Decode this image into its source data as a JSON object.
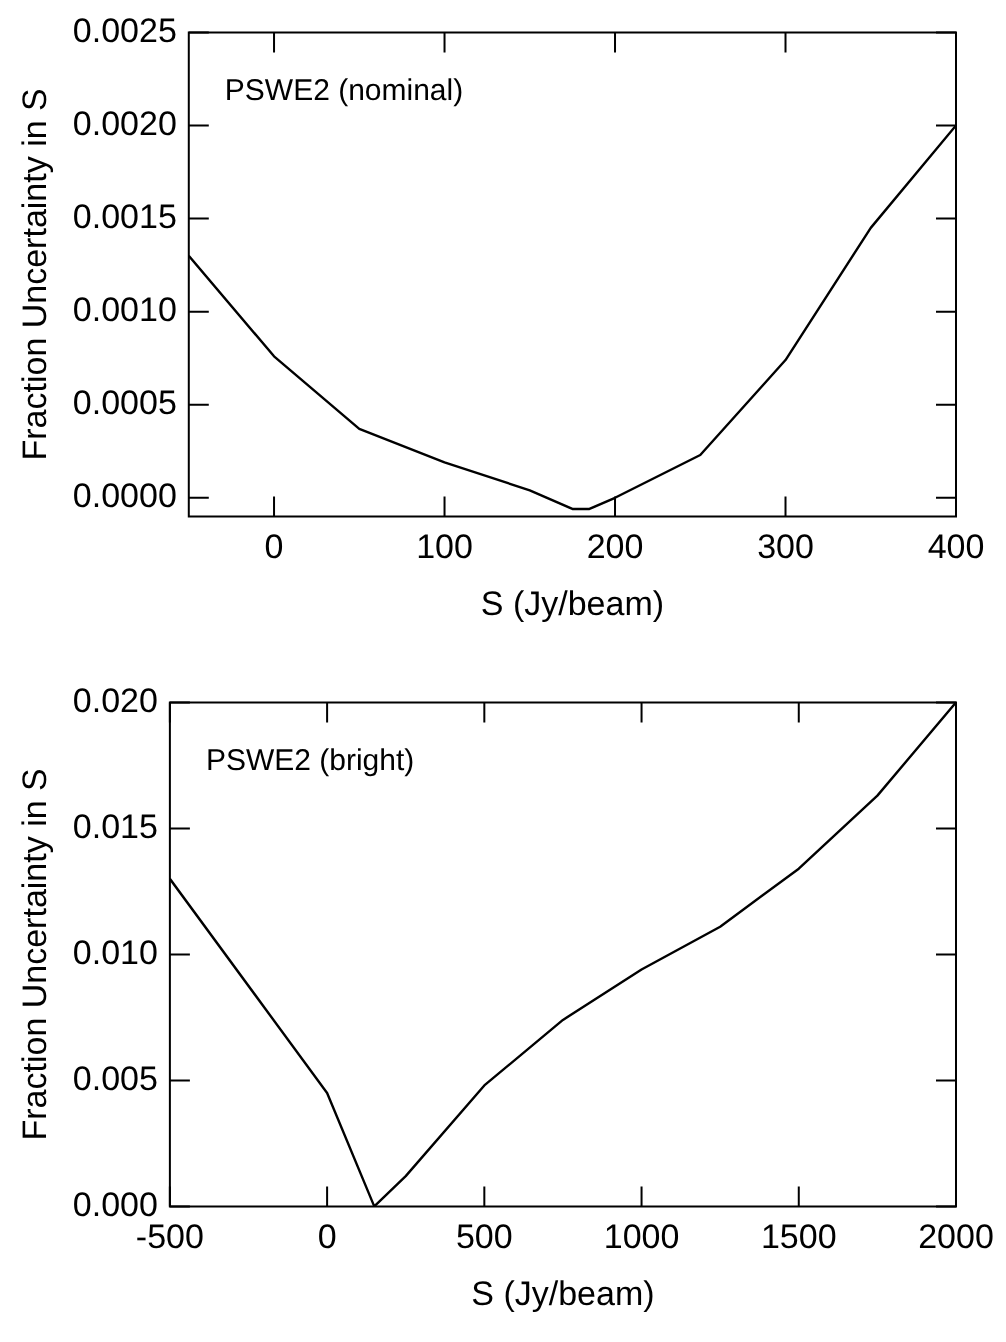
{
  "chart_data": [
    {
      "type": "line",
      "xlabel": "S (Jy/beam)",
      "ylabel": "Fraction Uncertainty in S",
      "annotations": [
        "PSWE2 (nominal)"
      ],
      "grid": false,
      "legend": false,
      "marker": "none",
      "line_style": "solid",
      "x": [
        -50,
        0,
        50,
        100,
        150,
        175,
        185,
        200,
        250,
        300,
        350,
        400
      ],
      "series": [
        {
          "color": "#000000",
          "values": [
            0.0013,
            0.00076,
            0.00037,
            0.00019,
            4e-05,
            -6e-05,
            -6e-05,
            0,
            0.00023,
            0.00074,
            0.00145,
            0.002
          ]
        }
      ],
      "xlim": [
        -50,
        400
      ],
      "xticks": [
        0,
        100,
        200,
        300,
        400
      ],
      "ylim": [
        -0.0001,
        0.0025
      ],
      "yticks": [
        {
          "value": 0,
          "label": "0.0000"
        },
        {
          "value": 0.0005,
          "label": "0.0005"
        },
        {
          "value": 0.001,
          "label": "0.0010"
        },
        {
          "value": 0.0015,
          "label": "0.0015"
        },
        {
          "value": 0.002,
          "label": "0.0020"
        },
        {
          "value": 0.0025,
          "label": "0.0025"
        }
      ]
    },
    {
      "type": "line",
      "xlabel": "S (Jy/beam)",
      "ylabel": "Fraction Uncertainty in S",
      "annotations": [
        "PSWE2 (bright)"
      ],
      "grid": false,
      "legend": false,
      "marker": "none",
      "line_style": "solid",
      "x": [
        -500,
        0,
        150,
        250,
        500,
        750,
        1000,
        1250,
        1500,
        1750,
        2000
      ],
      "series": [
        {
          "color": "#000000",
          "values": [
            0.013,
            0.0045,
            0,
            0.0012,
            0.0048,
            0.0074,
            0.0094,
            0.0111,
            0.0134,
            0.0163,
            0.02
          ]
        }
      ],
      "xlim": [
        -500,
        2000
      ],
      "xticks": [
        -500,
        0,
        500,
        1000,
        1500,
        2000
      ],
      "ylim": [
        0,
        0.02
      ],
      "yticks": [
        {
          "value": 0,
          "label": "0.000"
        },
        {
          "value": 0.005,
          "label": "0.005"
        },
        {
          "value": 0.01,
          "label": "0.010"
        },
        {
          "value": 0.015,
          "label": "0.015"
        },
        {
          "value": 0.02,
          "label": "0.020"
        }
      ]
    }
  ]
}
